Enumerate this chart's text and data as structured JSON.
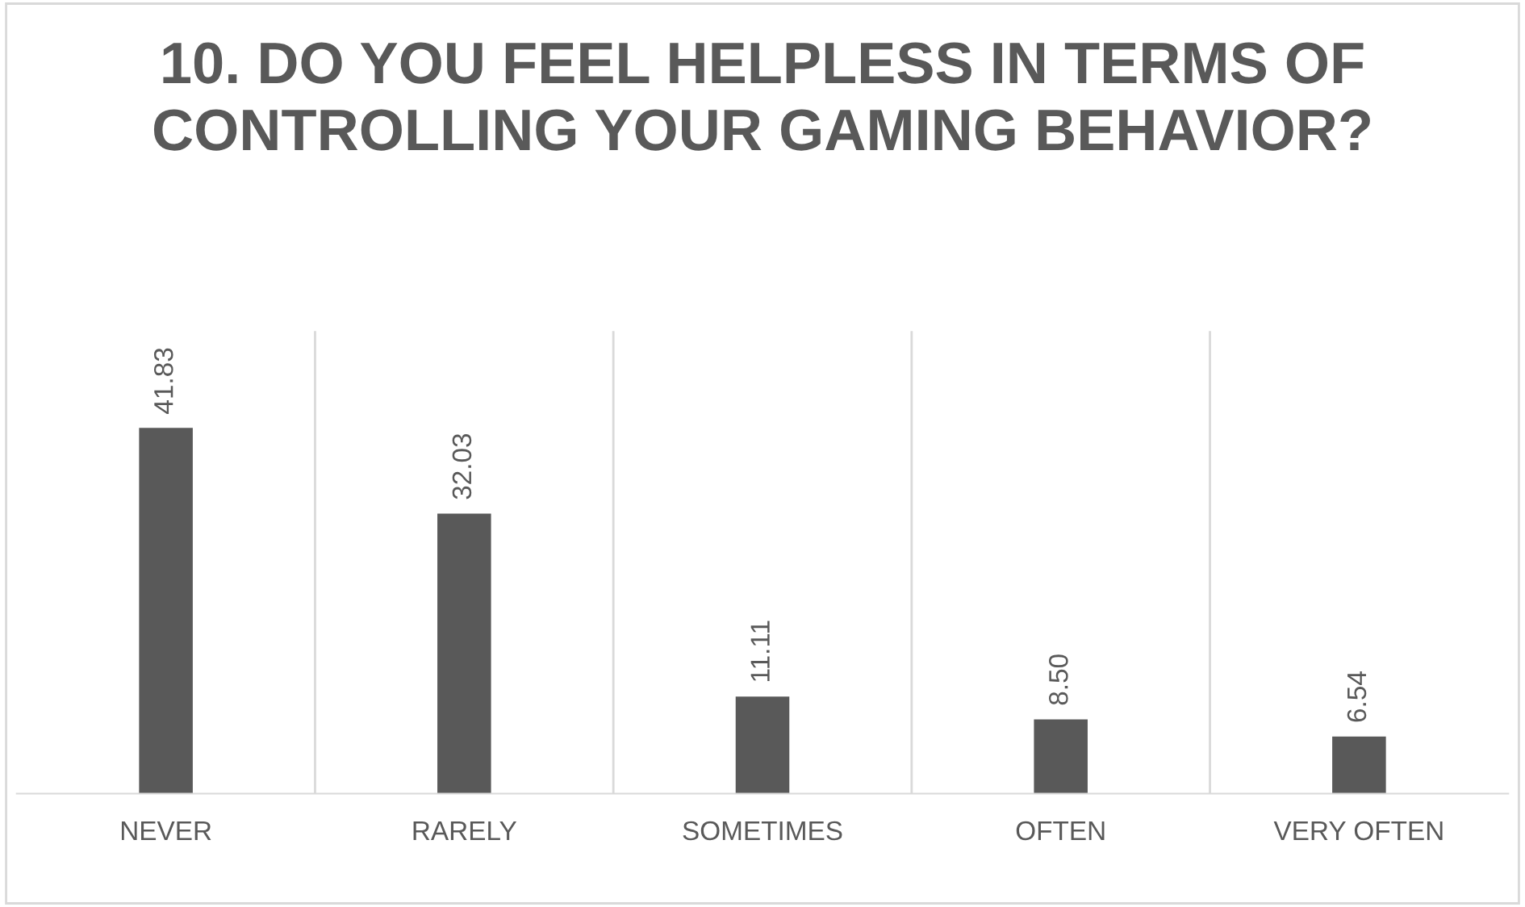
{
  "chart_data": {
    "type": "bar",
    "title": "10. DO YOU FEEL HELPLESS IN TERMS OF CONTROLLING YOUR GAMING BEHAVIOR?",
    "categories": [
      "NEVER",
      "RARELY",
      "SOMETIMES",
      "OFTEN",
      "VERY OFTEN"
    ],
    "values": [
      41.83,
      32.03,
      11.11,
      8.5,
      6.54
    ],
    "value_labels": [
      "41.83",
      "32.03",
      "11.11",
      "8.50",
      "6.54"
    ],
    "color": "#595959",
    "grid": "x",
    "legend": false
  }
}
